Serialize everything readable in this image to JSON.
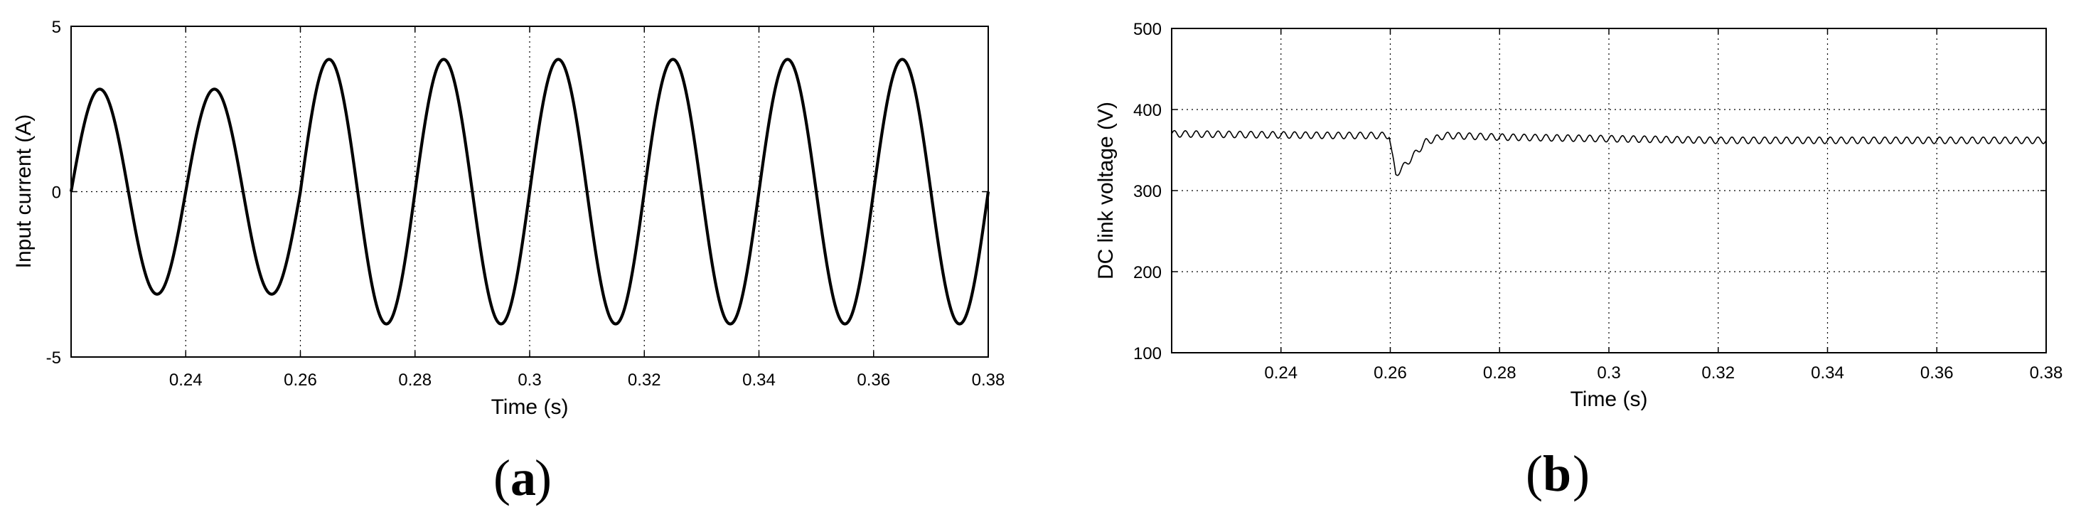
{
  "chart_data": [
    {
      "id": "a",
      "type": "line",
      "panel_label": "a",
      "xlabel": "Time (s)",
      "ylabel": "Input current (A)",
      "xlim": [
        0.22,
        0.38
      ],
      "ylim": [
        -5,
        5
      ],
      "xticks": [
        0.24,
        0.26,
        0.28,
        0.3,
        0.32,
        0.34,
        0.36,
        0.38
      ],
      "xtick_labels": [
        "0.24",
        "0.26",
        "0.28",
        "0.3",
        "0.32",
        "0.34",
        "0.36",
        "0.38"
      ],
      "yticks": [
        -5,
        0,
        5
      ],
      "ytick_labels": [
        "-5",
        "0",
        "5"
      ],
      "grid": true,
      "series": [
        {
          "line_style": "thick-black",
          "segments": [
            {
              "t_start": 0.22,
              "t_end": 0.26,
              "frequency_hz": 50,
              "amplitude": 3.1,
              "phase_ref_t": 0.22
            },
            {
              "t_start": 0.26,
              "t_end": 0.38,
              "frequency_hz": 50,
              "amplitude": 4.0,
              "phase_ref_t": 0.22
            }
          ]
        }
      ]
    },
    {
      "id": "b",
      "type": "line",
      "panel_label": "b",
      "xlabel": "Time (s)",
      "ylabel": "DC link voltage (V)",
      "xlim": [
        0.22,
        0.38
      ],
      "ylim": [
        100,
        500
      ],
      "xticks": [
        0.24,
        0.26,
        0.28,
        0.3,
        0.32,
        0.34,
        0.36,
        0.38
      ],
      "xtick_labels": [
        "0.24",
        "0.26",
        "0.28",
        "0.3",
        "0.32",
        "0.34",
        "0.36",
        "0.38"
      ],
      "yticks": [
        100,
        200,
        300,
        400,
        500
      ],
      "ytick_labels": [
        "100",
        "200",
        "300",
        "400",
        "500"
      ],
      "grid": true,
      "series": [
        {
          "line_style": "thin-black",
          "points": [
            [
              0.22,
              370
            ],
            [
              0.235,
              369
            ],
            [
              0.25,
              368
            ],
            [
              0.2598,
              368
            ],
            [
              0.2603,
              345
            ],
            [
              0.261,
              320
            ],
            [
              0.2625,
              330
            ],
            [
              0.2645,
              345
            ],
            [
              0.2665,
              360
            ],
            [
              0.27,
              368
            ],
            [
              0.28,
              366
            ],
            [
              0.3,
              364
            ],
            [
              0.32,
              362
            ],
            [
              0.34,
              362
            ],
            [
              0.36,
              362
            ],
            [
              0.38,
              362
            ]
          ],
          "ripple_amplitude": 4,
          "ripple_frequency_hz": 500
        }
      ]
    }
  ]
}
